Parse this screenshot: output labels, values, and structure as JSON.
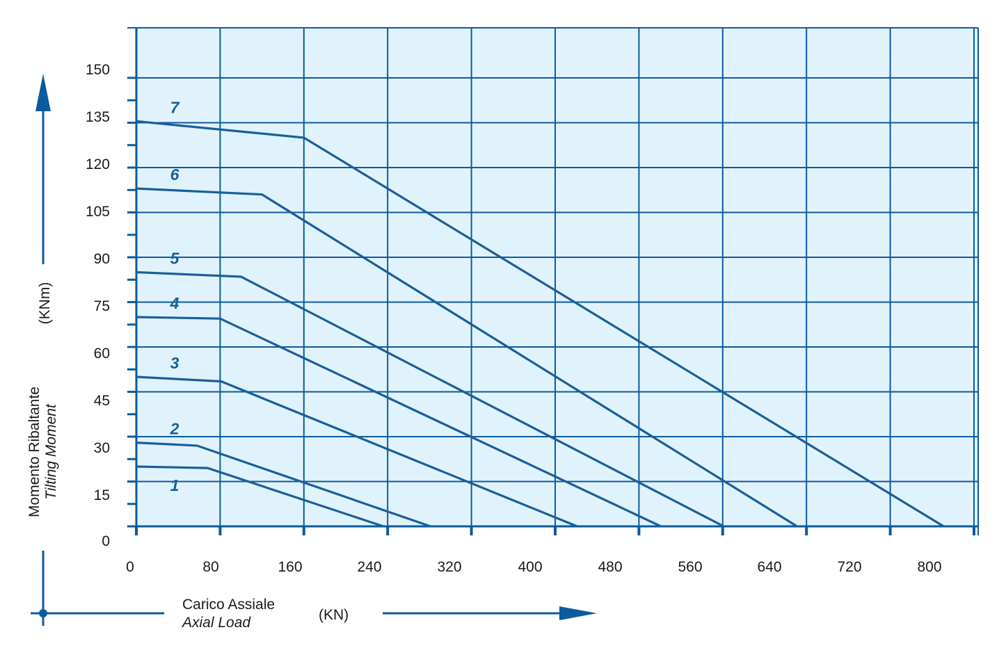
{
  "colors": {
    "plot_background": "#e0f2fb",
    "grid": "#0b5b9e",
    "curve": "#195f9a",
    "axis_arrow": "#0b5b9e",
    "text": "#1a1a1a"
  },
  "chart_data": {
    "type": "line",
    "title": "",
    "xlabel": {
      "line1": "Carico Assiale",
      "line2": "Axial Load",
      "unit": "(KN)"
    },
    "ylabel": {
      "line1": "Momento Ribaltante",
      "line2": "Tilting Moment",
      "unit": "(KNm)"
    },
    "x_ticks": [
      0,
      80,
      160,
      240,
      320,
      400,
      480,
      560,
      640,
      720,
      800
    ],
    "y_ticks": [
      0,
      15,
      30,
      45,
      60,
      75,
      90,
      105,
      120,
      135,
      150
    ],
    "xlim": [
      0,
      803
    ],
    "ylim": [
      0,
      150
    ],
    "grid": true,
    "series": [
      {
        "name": "1",
        "points": [
          [
            0,
            20
          ],
          [
            68,
            19.5
          ],
          [
            236,
            0
          ]
        ]
      },
      {
        "name": "2",
        "points": [
          [
            0,
            28
          ],
          [
            58,
            27
          ],
          [
            281,
            0
          ]
        ]
      },
      {
        "name": "3",
        "points": [
          [
            0,
            50
          ],
          [
            81,
            48.5
          ],
          [
            421,
            0
          ]
        ]
      },
      {
        "name": "4",
        "points": [
          [
            0,
            70
          ],
          [
            80,
            69.5
          ],
          [
            501,
            0
          ]
        ]
      },
      {
        "name": "5",
        "points": [
          [
            0,
            85
          ],
          [
            100,
            83.5
          ],
          [
            561,
            0
          ]
        ]
      },
      {
        "name": "6",
        "points": [
          [
            0,
            113
          ],
          [
            120,
            111
          ],
          [
            631,
            0
          ]
        ]
      },
      {
        "name": "7",
        "points": [
          [
            0,
            135.5
          ],
          [
            160,
            130
          ],
          [
            771,
            0
          ]
        ]
      }
    ]
  }
}
